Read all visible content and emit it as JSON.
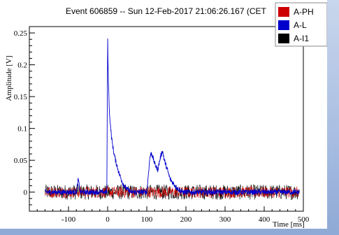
{
  "chart_data": {
    "type": "line",
    "title": "Event 606859 -- Sun 12-Feb-2017 21:06:26.167 (CET",
    "xlabel": "Time [ms]",
    "ylabel": "Amplitude [V]",
    "xlim": [
      -200,
      500
    ],
    "ylim": [
      -0.03,
      0.26
    ],
    "x_ticks": [
      -100,
      0,
      100,
      200,
      300,
      400,
      500
    ],
    "y_ticks": [
      0,
      0.05,
      0.1,
      0.15,
      0.2,
      0.25
    ],
    "y_tick_labels": [
      "0",
      "0.05",
      "0.1",
      "0.15",
      "0.2",
      "0.25"
    ],
    "legend_position": "top-right",
    "grid": false,
    "series": [
      {
        "name": "A-PH",
        "color": "#cc0000",
        "x": [
          -160,
          -80,
          0,
          100,
          200,
          300,
          400,
          490
        ],
        "y": [
          0,
          0,
          0,
          0,
          0,
          0,
          0,
          0
        ]
      },
      {
        "name": "A-L",
        "color": "#0000cc",
        "x": [
          -160,
          -80,
          -75,
          -70,
          -20,
          -2,
          0,
          2,
          5,
          10,
          15,
          20,
          30,
          40,
          50,
          60,
          100,
          108,
          112,
          120,
          128,
          135,
          140,
          145,
          150,
          160,
          175,
          190,
          250,
          350,
          490
        ],
        "y": [
          0,
          0,
          0.02,
          0,
          0,
          0,
          0.245,
          0.17,
          0.12,
          0.085,
          0.065,
          0.05,
          0.028,
          0.012,
          0.004,
          0,
          0,
          0.055,
          0.062,
          0.045,
          0.035,
          0.055,
          0.065,
          0.05,
          0.04,
          0.02,
          0.008,
          0,
          0,
          0,
          0
        ]
      },
      {
        "name": "A-I1",
        "color": "#000000",
        "x": [
          -160,
          0,
          100,
          200,
          300,
          400,
          490
        ],
        "y": [
          0,
          0,
          0,
          0,
          0,
          0,
          0
        ],
        "noise_amplitude": 0.012
      }
    ]
  }
}
